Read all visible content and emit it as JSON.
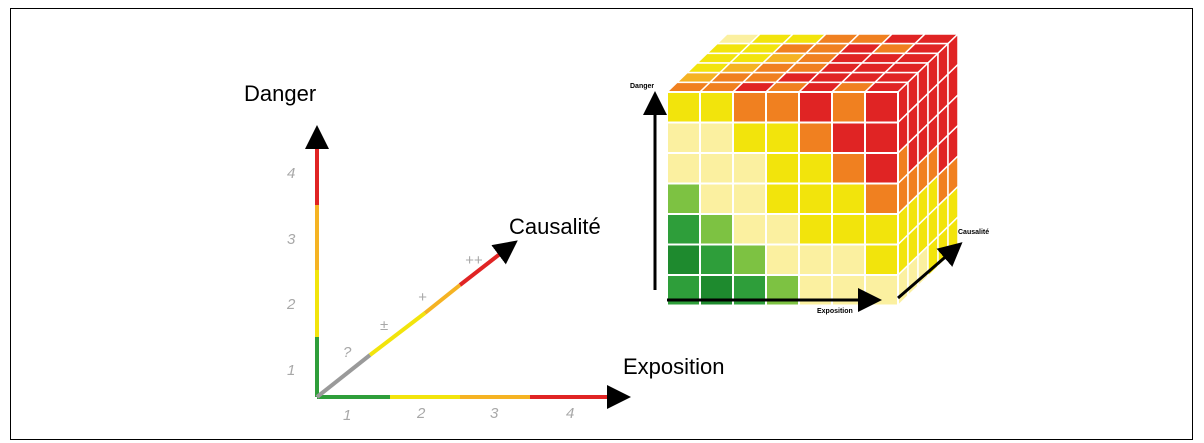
{
  "left_diagram": {
    "danger_label": "Danger",
    "causalite_label": "Causalité",
    "exposition_label": "Exposition",
    "danger_ticks": [
      "1",
      "2",
      "3",
      "4"
    ],
    "exposition_ticks": [
      "1",
      "2",
      "3",
      "4"
    ],
    "causalite_ticks": [
      "?",
      "±",
      "+",
      "++"
    ]
  },
  "cube": {
    "danger_label": "Danger",
    "causalite_label": "Causalité",
    "exposition_label": "Exposition"
  },
  "colors": {
    "red": "#e02424",
    "orange": "#f08020",
    "amber": "#f5b323",
    "yellow": "#f2e40c",
    "pale": "#fbf0a0",
    "lightgreen": "#7dc242",
    "green": "#2e9e3a",
    "darkgreen": "#1e8a2e",
    "gray": "#9a9a9a"
  }
}
